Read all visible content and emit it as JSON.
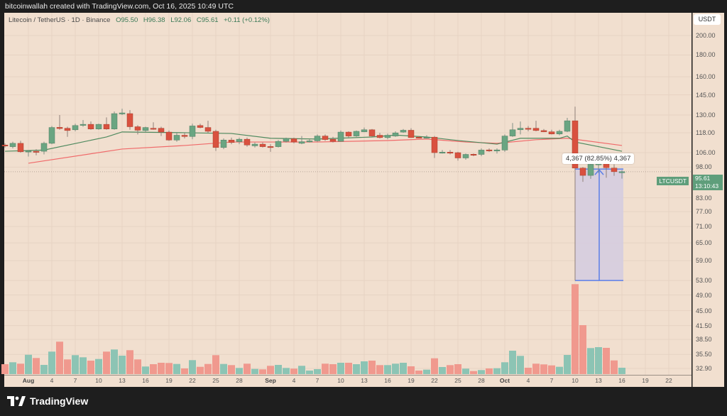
{
  "header": {
    "attribution": "bitcoinwallah created with TradingView.com, Oct 16, 2025 10:49 UTC"
  },
  "legend": {
    "symbol": "Litecoin / TetherUS · 1D · Binance",
    "open": "O95.50",
    "high": "H96.38",
    "low": "L92.06",
    "close": "C95.61",
    "change": "+0.11 (+0.12%)"
  },
  "axis": {
    "currency": "USDT",
    "price_ticks": [
      "200.00",
      "180.00",
      "160.00",
      "145.00",
      "130.00",
      "118.00",
      "106.00",
      "98.00",
      "83.00",
      "77.00",
      "71.00",
      "65.00",
      "59.00",
      "53.00",
      "49.00",
      "45.00",
      "41.50",
      "38.50",
      "35.50",
      "32.90"
    ],
    "time_labels": [
      {
        "t": "Aug",
        "i": 3,
        "bold": true
      },
      {
        "t": "4",
        "i": 6
      },
      {
        "t": "7",
        "i": 9
      },
      {
        "t": "10",
        "i": 12
      },
      {
        "t": "13",
        "i": 15
      },
      {
        "t": "16",
        "i": 18
      },
      {
        "t": "19",
        "i": 21
      },
      {
        "t": "22",
        "i": 24
      },
      {
        "t": "25",
        "i": 27
      },
      {
        "t": "28",
        "i": 30
      },
      {
        "t": "Sep",
        "i": 34,
        "bold": true
      },
      {
        "t": "4",
        "i": 37
      },
      {
        "t": "7",
        "i": 40
      },
      {
        "t": "10",
        "i": 43
      },
      {
        "t": "13",
        "i": 46
      },
      {
        "t": "16",
        "i": 49
      },
      {
        "t": "19",
        "i": 52
      },
      {
        "t": "22",
        "i": 55
      },
      {
        "t": "25",
        "i": 58
      },
      {
        "t": "28",
        "i": 61
      },
      {
        "t": "Oct",
        "i": 64,
        "bold": true
      },
      {
        "t": "4",
        "i": 67
      },
      {
        "t": "7",
        "i": 70
      },
      {
        "t": "10",
        "i": 73
      },
      {
        "t": "13",
        "i": 76
      },
      {
        "t": "16",
        "i": 79
      },
      {
        "t": "19",
        "i": 82
      },
      {
        "t": "22",
        "i": 85
      }
    ]
  },
  "last_price": {
    "symbol": "LTCUSDT",
    "price": "95.61",
    "countdown": "13:10:43",
    "value": 95.61
  },
  "measurement": {
    "label": "4,367 (82.85%) 4,367",
    "from_index": 73,
    "to_index": 79,
    "top_price": 97.0,
    "bottom_price": 53
  },
  "colors": {
    "up": "#6aa582",
    "down": "#d9513f",
    "vol_up": "#8cc4b4",
    "vol_down": "#f0998e",
    "ma_fast": "#4f8a5f",
    "ma_slow": "#f06a6a",
    "measure": "#5b7fe8"
  },
  "chart_data": {
    "type": "candlestick",
    "start_date": "Jul 29",
    "ohlc": [
      [
        110.5,
        111.5,
        109,
        110
      ],
      [
        109.5,
        112.5,
        108.5,
        111.5
      ],
      [
        111.5,
        113,
        106,
        106.5
      ],
      [
        106.5,
        107.5,
        103.8,
        107
      ],
      [
        106.8,
        108,
        104.5,
        106.4
      ],
      [
        106.8,
        112.5,
        105,
        111.5
      ],
      [
        111.5,
        122.5,
        111,
        121.5
      ],
      [
        121.6,
        130,
        120,
        120.8
      ],
      [
        121,
        122,
        115.5,
        119.5
      ],
      [
        120,
        124,
        119,
        122.8
      ],
      [
        123,
        126.5,
        122,
        123.6
      ],
      [
        123.6,
        125.5,
        120,
        120.5
      ],
      [
        120.5,
        124,
        120,
        123.6
      ],
      [
        123.6,
        128.3,
        120,
        120.5
      ],
      [
        120.5,
        132.5,
        120,
        131
      ],
      [
        131,
        134.5,
        130,
        131.5
      ],
      [
        131,
        133.5,
        120,
        122
      ],
      [
        122,
        123,
        117,
        119.7
      ],
      [
        119.5,
        122,
        118.5,
        121.5
      ],
      [
        121,
        125,
        120,
        120.8
      ],
      [
        121,
        122,
        116,
        118.5
      ],
      [
        118.5,
        119.5,
        113,
        113.5
      ],
      [
        113.5,
        118,
        112.5,
        116.5
      ],
      [
        116.5,
        118,
        114.5,
        115.7
      ],
      [
        115.7,
        124,
        114,
        122.5
      ],
      [
        122.8,
        124,
        121,
        121.5
      ],
      [
        121.5,
        126,
        118,
        119
      ],
      [
        119,
        120,
        107,
        109
      ],
      [
        109,
        114.5,
        108,
        113.5
      ],
      [
        113.5,
        115,
        111,
        112
      ],
      [
        112.5,
        115,
        111,
        114
      ],
      [
        114,
        115,
        109.5,
        110.5
      ],
      [
        110,
        112,
        109,
        111
      ],
      [
        111,
        112,
        109,
        109.5
      ],
      [
        109.6,
        111,
        106.5,
        109.5
      ],
      [
        109.5,
        113.5,
        109,
        112.7
      ],
      [
        112.7,
        115,
        112,
        114.5
      ],
      [
        114.3,
        115,
        111.5,
        112.3
      ],
      [
        111.5,
        116,
        111,
        112.5
      ],
      [
        112.9,
        114,
        112,
        113
      ],
      [
        113,
        117,
        112.5,
        116
      ],
      [
        116,
        117,
        113,
        113.8
      ],
      [
        114,
        115.5,
        112,
        112.7
      ],
      [
        112.7,
        119.5,
        112.5,
        118.5
      ],
      [
        118.5,
        119,
        115,
        116
      ],
      [
        116,
        119.5,
        115.5,
        119
      ],
      [
        118.7,
        121.5,
        118.5,
        120
      ],
      [
        120,
        120.5,
        115.5,
        116
      ],
      [
        116.5,
        118,
        114.5,
        115
      ],
      [
        115,
        117.5,
        114,
        116.5
      ],
      [
        116,
        119,
        115.5,
        118
      ],
      [
        118.5,
        120.5,
        118,
        119.7
      ],
      [
        119.7,
        121,
        115,
        115
      ],
      [
        115.3,
        116,
        114.5,
        115.2
      ],
      [
        115.2,
        116.5,
        114.5,
        115.3
      ],
      [
        115.3,
        116,
        103,
        106
      ],
      [
        106.3,
        107.5,
        105.5,
        106.3
      ],
      [
        106.3,
        107.5,
        105,
        106
      ],
      [
        106,
        106.5,
        101.5,
        103
      ],
      [
        103,
        105.5,
        102,
        105
      ],
      [
        105.1,
        105.5,
        104,
        105
      ],
      [
        105,
        108.5,
        104,
        107.5
      ],
      [
        107.6,
        108.5,
        106.5,
        107.5
      ],
      [
        107.5,
        108.5,
        105.5,
        107.6
      ],
      [
        107.5,
        117,
        106.5,
        116
      ],
      [
        116,
        124.5,
        115.5,
        120
      ],
      [
        120,
        125.5,
        117,
        121
      ],
      [
        121,
        122.5,
        119,
        120.9
      ],
      [
        121,
        126,
        119,
        119.5
      ],
      [
        119.5,
        120.5,
        118.5,
        118.7
      ],
      [
        118.7,
        120,
        117,
        117.3
      ],
      [
        117.3,
        120,
        116.5,
        119
      ],
      [
        119,
        128,
        118.5,
        126
      ],
      [
        126,
        136,
        53,
        97.5
      ],
      [
        97.5,
        98,
        90.5,
        93.7
      ],
      [
        93.7,
        101,
        92,
        99.5
      ],
      [
        99.6,
        100.5,
        95,
        99.8
      ],
      [
        99.8,
        100.5,
        92.5,
        97.7
      ],
      [
        97.5,
        99.5,
        93.5,
        95.6
      ],
      [
        95.5,
        96.38,
        92.06,
        95.61
      ]
    ],
    "volume_relative": [
      14,
      16.7,
      14.7,
      27.3,
      22.7,
      13,
      31.7,
      45.7,
      20.7,
      26.7,
      23.7,
      19,
      21.3,
      31.7,
      34.7,
      26,
      33.7,
      20.7,
      10.7,
      14,
      16,
      15.7,
      14.3,
      8,
      19.7,
      10.3,
      14.3,
      26.7,
      14.3,
      12.7,
      8.7,
      14.7,
      7.3,
      6.7,
      11.7,
      13,
      8.7,
      7.7,
      11.7,
      5,
      7,
      14.7,
      14,
      16,
      16,
      14,
      18,
      19,
      12.7,
      12.7,
      14.7,
      16,
      11,
      5,
      6.3,
      22.3,
      10,
      12.7,
      14,
      7.7,
      4.3,
      5.7,
      8,
      8.3,
      16.7,
      33,
      25.7,
      9,
      14.7,
      13.7,
      12.3,
      10.3,
      27,
      126.7,
      69,
      36.7,
      38,
      37,
      19.3,
      9
    ],
    "ma_fast": [
      [
        0,
        106.8
      ],
      [
        5,
        107.5
      ],
      [
        13,
        115.4
      ],
      [
        15,
        118.6
      ],
      [
        23,
        118.1
      ],
      [
        29,
        117.6
      ],
      [
        34,
        114.6
      ],
      [
        40,
        114.1
      ],
      [
        47,
        115.4
      ],
      [
        50,
        116.6
      ],
      [
        54,
        115.4
      ],
      [
        58,
        113.2
      ],
      [
        63,
        111.0
      ],
      [
        66,
        114.6
      ],
      [
        71,
        114.6
      ],
      [
        72,
        116.0
      ],
      [
        73,
        112.3
      ],
      [
        79,
        106.8
      ]
    ],
    "ma_slow": [
      [
        3,
        100.1
      ],
      [
        15,
        108.1
      ],
      [
        23,
        110.2
      ],
      [
        29,
        112.3
      ],
      [
        40,
        112.3
      ],
      [
        49,
        113.2
      ],
      [
        54,
        114.1
      ],
      [
        59,
        112.3
      ],
      [
        63,
        111.5
      ],
      [
        68,
        113.7
      ],
      [
        72,
        114.6
      ],
      [
        79,
        110.2
      ]
    ],
    "scale": "log"
  },
  "footer": {
    "brand": "TradingView"
  }
}
